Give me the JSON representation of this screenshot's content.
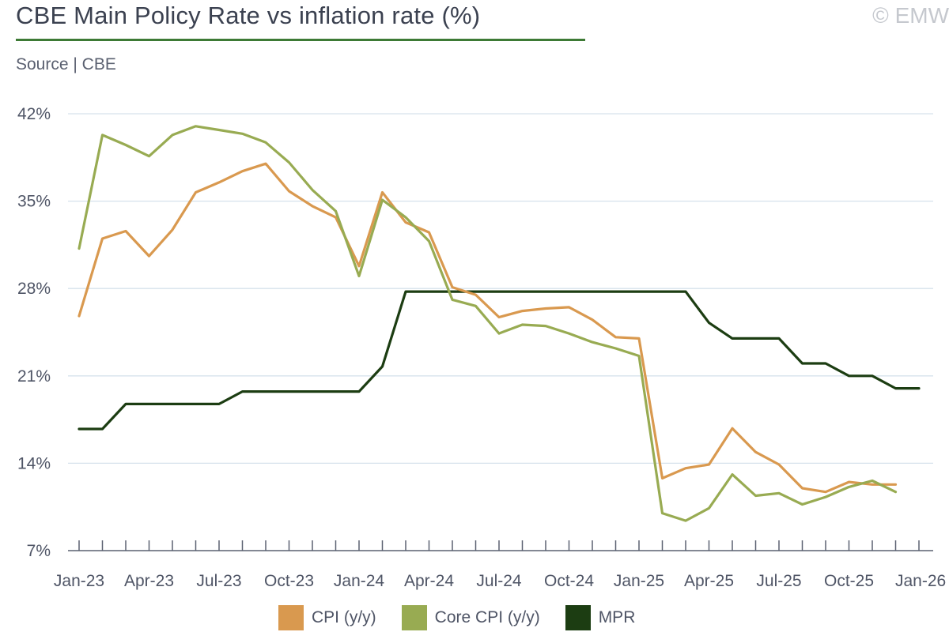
{
  "header": {
    "title": "CBE Main Policy Rate vs inflation rate (%)",
    "source": "Source | CBE",
    "copyright": "© EMW"
  },
  "colors": {
    "cpi": "#d9994f",
    "core_cpi": "#98ab52",
    "mpr": "#1c3d12",
    "grid": "#d6e2ec",
    "axis": "#5a6070",
    "title_rule": "#3d7a35"
  },
  "chart_data": {
    "type": "line",
    "x": [
      "Jan-23",
      "Feb-23",
      "Mar-23",
      "Apr-23",
      "May-23",
      "Jun-23",
      "Jul-23",
      "Aug-23",
      "Sep-23",
      "Oct-23",
      "Nov-23",
      "Dec-23",
      "Jan-24",
      "Feb-24",
      "Mar-24",
      "Apr-24",
      "May-24",
      "Jun-24",
      "Jul-24",
      "Aug-24",
      "Sep-24",
      "Oct-24",
      "Nov-24",
      "Dec-24",
      "Jan-25",
      "Feb-25",
      "Mar-25",
      "Apr-25",
      "May-25",
      "Jun-25",
      "Jul-25",
      "Aug-25",
      "Sep-25",
      "Oct-25",
      "Nov-25",
      "Dec-25",
      "Jan-26"
    ],
    "x_tick_labels": [
      "Jan-23",
      "Apr-23",
      "Jul-23",
      "Oct-23",
      "Jan-24",
      "Apr-24",
      "Jul-24",
      "Oct-24",
      "Jan-25",
      "Apr-25",
      "Jul-25",
      "Oct-25",
      "Jan-26"
    ],
    "y_tick_labels": [
      "7%",
      "14%",
      "21%",
      "28%",
      "35%",
      "42%"
    ],
    "ylim": [
      7,
      42
    ],
    "y_ticks": [
      7,
      14,
      21,
      28,
      35,
      42
    ],
    "grid": true,
    "legend_position": "bottom",
    "series": [
      {
        "name": "CPI (y/y)",
        "values": [
          25.8,
          32.0,
          32.6,
          30.6,
          32.7,
          35.7,
          36.5,
          37.4,
          38.0,
          35.8,
          34.6,
          33.7,
          29.8,
          35.7,
          33.3,
          32.5,
          28.1,
          27.5,
          25.7,
          26.2,
          26.4,
          26.5,
          25.5,
          24.1,
          24.0,
          12.8,
          13.6,
          13.9,
          16.8,
          14.9,
          13.9,
          12.0,
          11.7,
          12.5,
          12.3,
          12.3,
          null
        ]
      },
      {
        "name": "Core CPI (y/y)",
        "values": [
          31.2,
          40.3,
          39.5,
          38.6,
          40.3,
          41.0,
          40.7,
          40.4,
          39.7,
          38.1,
          35.9,
          34.2,
          29.0,
          35.1,
          33.7,
          31.8,
          27.1,
          26.6,
          24.4,
          25.1,
          25.0,
          24.4,
          23.7,
          23.2,
          22.6,
          10.0,
          9.4,
          10.4,
          13.1,
          11.4,
          11.6,
          10.7,
          11.3,
          12.1,
          12.6,
          11.7,
          null
        ]
      },
      {
        "name": "MPR",
        "values": [
          16.75,
          16.75,
          18.75,
          18.75,
          18.75,
          18.75,
          18.75,
          19.75,
          19.75,
          19.75,
          19.75,
          19.75,
          19.75,
          21.75,
          27.75,
          27.75,
          27.75,
          27.75,
          27.75,
          27.75,
          27.75,
          27.75,
          27.75,
          27.75,
          27.75,
          27.75,
          27.75,
          25.25,
          24.0,
          24.0,
          24.0,
          22.0,
          22.0,
          21.0,
          21.0,
          20.0,
          20.0
        ]
      }
    ]
  }
}
